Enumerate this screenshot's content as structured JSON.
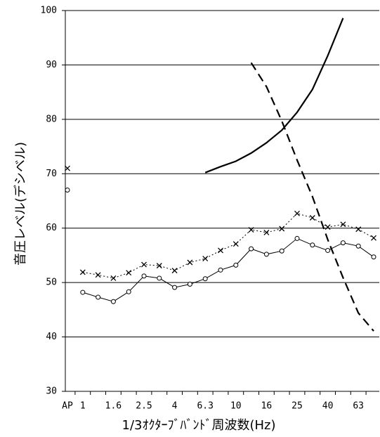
{
  "chart_data": {
    "type": "line",
    "y_label": "音圧レベル(デシベル)",
    "x_label": "1/3ｵｸﾀｰﾌﾞﾊﾞﾝﾄﾞ周波数(Hz)",
    "categories": [
      "AP",
      "1",
      null,
      "1.6",
      null,
      "2.5",
      null,
      "4",
      null,
      "6.3",
      null,
      "10",
      null,
      "16",
      null,
      "25",
      null,
      "40",
      null,
      "63",
      null
    ],
    "ylim": [
      30,
      100
    ],
    "yticks": [
      30,
      40,
      50,
      60,
      70,
      80,
      90,
      100
    ],
    "grid": true,
    "color": "#000000",
    "series": [
      {
        "marker": "cross",
        "line_style": "none",
        "line_width": 1,
        "values": [
          71,
          null,
          null,
          null,
          null,
          null,
          null,
          null,
          null,
          null,
          null,
          null,
          null,
          null,
          null,
          null,
          null,
          null,
          null,
          null,
          null
        ]
      },
      {
        "marker": "circle",
        "line_style": "none",
        "line_width": 1,
        "values": [
          67,
          null,
          null,
          null,
          null,
          null,
          null,
          null,
          null,
          null,
          null,
          null,
          null,
          null,
          null,
          null,
          null,
          null,
          null,
          null,
          null
        ]
      },
      {
        "marker": "cross",
        "line_style": "dotted",
        "line_width": 1,
        "values": [
          null,
          51.9,
          51.4,
          50.8,
          51.8,
          53.3,
          53.1,
          52.2,
          53.7,
          54.4,
          55.9,
          57.1,
          59.7,
          59.2,
          59.9,
          62.7,
          61.9,
          60.2,
          60.7,
          59.8,
          58.2
        ]
      },
      {
        "marker": "circle",
        "line_style": "solid",
        "line_width": 1,
        "values": [
          null,
          48.2,
          47.3,
          46.5,
          48.3,
          51.2,
          50.8,
          49.1,
          49.7,
          50.7,
          52.3,
          53.2,
          56.2,
          55.2,
          55.8,
          58.1,
          56.9,
          55.9,
          57.3,
          56.7,
          54.7
        ]
      },
      {
        "marker": "none",
        "line_style": "solid",
        "line_width": 2.2,
        "values": [
          null,
          null,
          null,
          null,
          null,
          null,
          null,
          null,
          null,
          70.2,
          71.3,
          72.3,
          73.8,
          75.7,
          78.0,
          81.3,
          85.5,
          91.7,
          98.6,
          null,
          null
        ]
      },
      {
        "marker": "none",
        "line_style": "dashed",
        "line_width": 2.2,
        "values": [
          null,
          null,
          null,
          null,
          null,
          null,
          null,
          null,
          null,
          null,
          null,
          null,
          90.4,
          86.0,
          79.7,
          72.5,
          65.8,
          57.9,
          50.9,
          44.4,
          41.1
        ]
      }
    ]
  }
}
